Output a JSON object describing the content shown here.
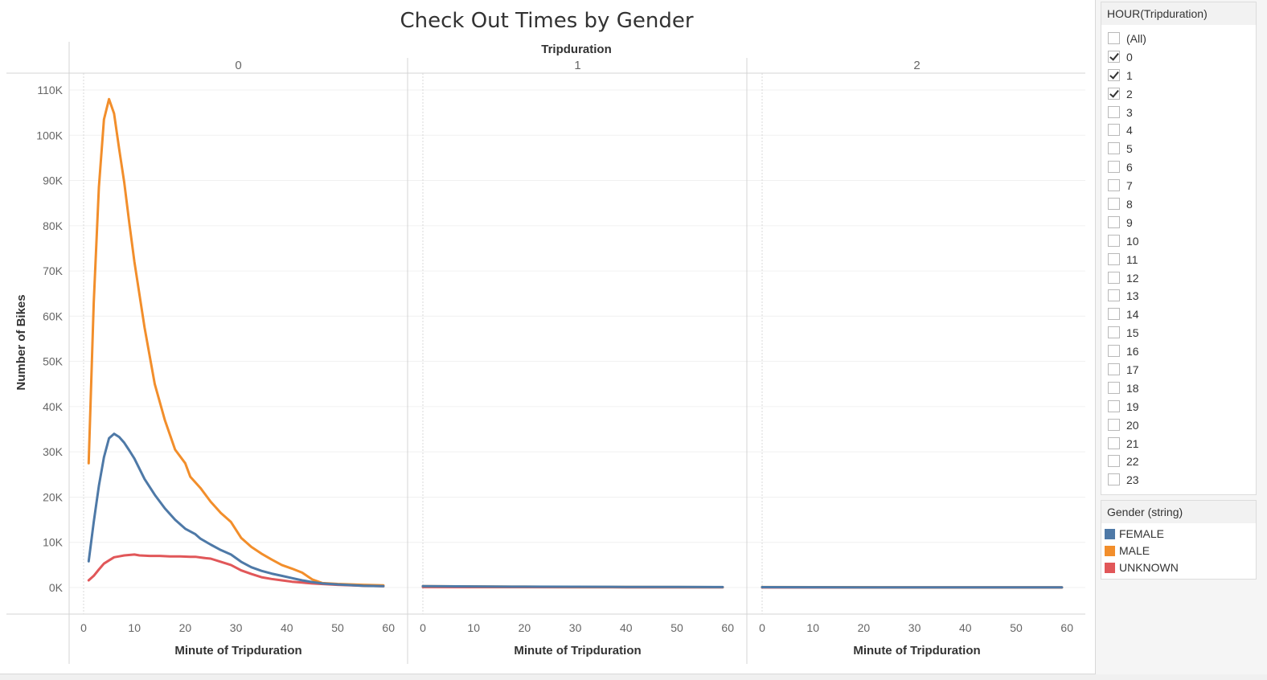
{
  "chart_data": {
    "type": "line",
    "title": "Check Out Times by Gender",
    "column_header": "Tripduration",
    "panels": [
      "0",
      "1",
      "2"
    ],
    "xlabel": "Minute of Tripduration",
    "ylabel": "Number of Bikes",
    "xlim": [
      0,
      60
    ],
    "ylim": [
      0,
      110000
    ],
    "x_ticks": [
      "0",
      "10",
      "20",
      "30",
      "40",
      "50",
      "60"
    ],
    "y_ticks": [
      "0K",
      "10K",
      "20K",
      "30K",
      "40K",
      "50K",
      "60K",
      "70K",
      "80K",
      "90K",
      "100K",
      "110K"
    ],
    "grid": true,
    "series": [
      {
        "name": "MALE",
        "color": "#f28e2b",
        "panel_data": [
          [
            [
              1,
              27500
            ],
            [
              2,
              63000
            ],
            [
              3,
              88500
            ],
            [
              4,
              103500
            ],
            [
              5,
              108000
            ],
            [
              6,
              104800
            ],
            [
              7,
              97000
            ],
            [
              8,
              89500
            ],
            [
              9,
              80500
            ],
            [
              10,
              72000
            ],
            [
              12,
              57500
            ],
            [
              14,
              45000
            ],
            [
              16,
              37000
            ],
            [
              18,
              30500
            ],
            [
              20,
              27500
            ],
            [
              21,
              24500
            ],
            [
              23,
              22000
            ],
            [
              25,
              19000
            ],
            [
              27,
              16500
            ],
            [
              29,
              14500
            ],
            [
              31,
              11000
            ],
            [
              33,
              9000
            ],
            [
              35,
              7500
            ],
            [
              37,
              6200
            ],
            [
              39,
              5000
            ],
            [
              41,
              4200
            ],
            [
              43,
              3300
            ],
            [
              45,
              1800
            ],
            [
              47,
              1000
            ],
            [
              50,
              800
            ],
            [
              55,
              600
            ],
            [
              59,
              500
            ]
          ],
          [
            [
              0,
              300
            ],
            [
              10,
              250
            ],
            [
              20,
              200
            ],
            [
              30,
              150
            ],
            [
              40,
              120
            ],
            [
              50,
              100
            ],
            [
              59,
              80
            ]
          ],
          [
            [
              0,
              100
            ],
            [
              10,
              80
            ],
            [
              20,
              70
            ],
            [
              30,
              60
            ],
            [
              40,
              50
            ],
            [
              50,
              40
            ],
            [
              59,
              30
            ]
          ]
        ]
      },
      {
        "name": "FEMALE",
        "color": "#4e79a7",
        "panel_data": [
          [
            [
              1,
              5800
            ],
            [
              2,
              14500
            ],
            [
              3,
              22500
            ],
            [
              4,
              28800
            ],
            [
              5,
              33000
            ],
            [
              6,
              34000
            ],
            [
              7,
              33300
            ],
            [
              8,
              32000
            ],
            [
              9,
              30300
            ],
            [
              10,
              28500
            ],
            [
              12,
              24000
            ],
            [
              14,
              20500
            ],
            [
              16,
              17500
            ],
            [
              18,
              15000
            ],
            [
              20,
              13000
            ],
            [
              22,
              11800
            ],
            [
              23,
              10800
            ],
            [
              25,
              9500
            ],
            [
              27,
              8300
            ],
            [
              29,
              7300
            ],
            [
              31,
              5700
            ],
            [
              33,
              4500
            ],
            [
              35,
              3700
            ],
            [
              37,
              3100
            ],
            [
              39,
              2600
            ],
            [
              41,
              2100
            ],
            [
              43,
              1600
            ],
            [
              45,
              1200
            ],
            [
              47,
              900
            ],
            [
              50,
              700
            ],
            [
              55,
              400
            ],
            [
              59,
              300
            ]
          ],
          [
            [
              0,
              300
            ],
            [
              10,
              250
            ],
            [
              20,
              200
            ],
            [
              30,
              170
            ],
            [
              40,
              150
            ],
            [
              50,
              120
            ],
            [
              59,
              100
            ]
          ],
          [
            [
              0,
              80
            ],
            [
              10,
              70
            ],
            [
              20,
              60
            ],
            [
              30,
              50
            ],
            [
              40,
              45
            ],
            [
              50,
              40
            ],
            [
              59,
              30
            ]
          ]
        ]
      },
      {
        "name": "UNKNOWN",
        "color": "#e15759",
        "panel_data": [
          [
            [
              1,
              1600
            ],
            [
              2,
              2600
            ],
            [
              3,
              4000
            ],
            [
              4,
              5300
            ],
            [
              5,
              6000
            ],
            [
              6,
              6700
            ],
            [
              7,
              6900
            ],
            [
              8,
              7100
            ],
            [
              10,
              7300
            ],
            [
              11,
              7100
            ],
            [
              13,
              7000
            ],
            [
              15,
              7000
            ],
            [
              17,
              6900
            ],
            [
              19,
              6900
            ],
            [
              21,
              6800
            ],
            [
              22,
              6800
            ],
            [
              24,
              6500
            ],
            [
              25,
              6400
            ],
            [
              27,
              5700
            ],
            [
              29,
              5000
            ],
            [
              31,
              3800
            ],
            [
              33,
              3000
            ],
            [
              35,
              2300
            ],
            [
              37,
              1900
            ],
            [
              39,
              1600
            ],
            [
              41,
              1300
            ],
            [
              43,
              1100
            ],
            [
              45,
              900
            ],
            [
              50,
              600
            ],
            [
              55,
              400
            ],
            [
              59,
              300
            ]
          ],
          [
            [
              0,
              100
            ],
            [
              10,
              90
            ],
            [
              20,
              80
            ],
            [
              30,
              70
            ],
            [
              40,
              60
            ],
            [
              50,
              50
            ],
            [
              59,
              40
            ]
          ],
          [
            [
              0,
              20
            ],
            [
              10,
              20
            ],
            [
              20,
              20
            ],
            [
              30,
              20
            ],
            [
              40,
              20
            ],
            [
              50,
              20
            ],
            [
              59,
              20
            ]
          ]
        ]
      }
    ]
  },
  "filter": {
    "title": "HOUR(Tripduration)",
    "items": [
      {
        "label": "(All)",
        "checked": false
      },
      {
        "label": "0",
        "checked": true
      },
      {
        "label": "1",
        "checked": true
      },
      {
        "label": "2",
        "checked": true
      },
      {
        "label": "3",
        "checked": false
      },
      {
        "label": "4",
        "checked": false
      },
      {
        "label": "5",
        "checked": false
      },
      {
        "label": "6",
        "checked": false
      },
      {
        "label": "7",
        "checked": false
      },
      {
        "label": "8",
        "checked": false
      },
      {
        "label": "9",
        "checked": false
      },
      {
        "label": "10",
        "checked": false
      },
      {
        "label": "11",
        "checked": false
      },
      {
        "label": "12",
        "checked": false
      },
      {
        "label": "13",
        "checked": false
      },
      {
        "label": "14",
        "checked": false
      },
      {
        "label": "15",
        "checked": false
      },
      {
        "label": "16",
        "checked": false
      },
      {
        "label": "17",
        "checked": false
      },
      {
        "label": "18",
        "checked": false
      },
      {
        "label": "19",
        "checked": false
      },
      {
        "label": "20",
        "checked": false
      },
      {
        "label": "21",
        "checked": false
      },
      {
        "label": "22",
        "checked": false
      },
      {
        "label": "23",
        "checked": false
      }
    ]
  },
  "legend": {
    "title": "Gender (string)",
    "items": [
      {
        "label": "FEMALE",
        "color": "#4e79a7"
      },
      {
        "label": "MALE",
        "color": "#f28e2b"
      },
      {
        "label": "UNKNOWN",
        "color": "#e15759"
      }
    ]
  }
}
